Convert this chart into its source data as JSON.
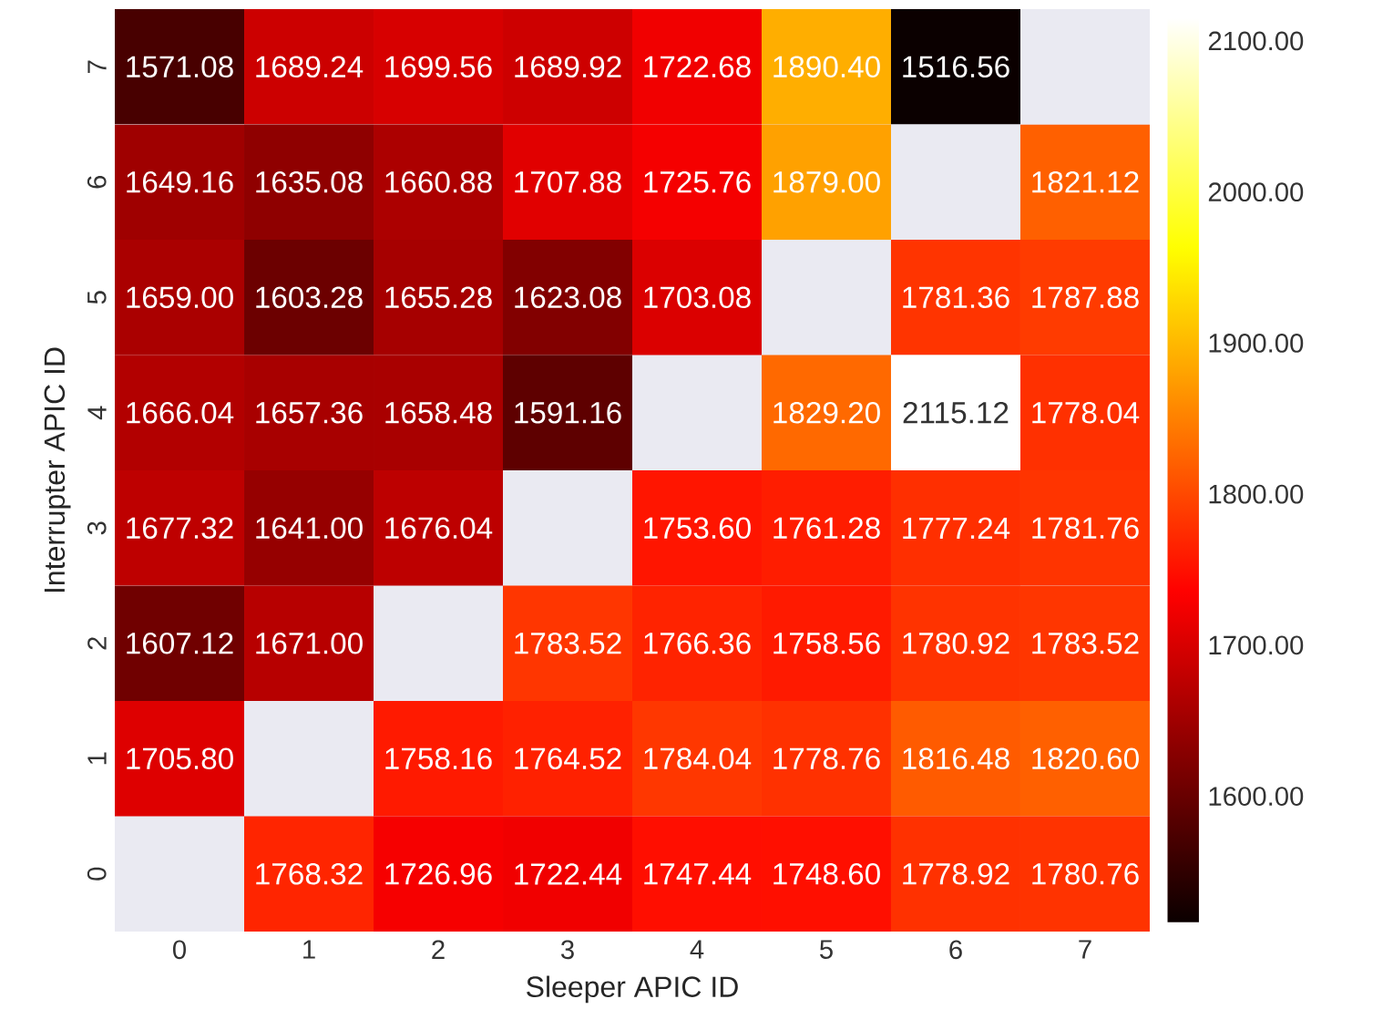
{
  "chart_data": {
    "type": "heatmap",
    "xlabel": "Sleeper APIC ID",
    "ylabel": "Interrupter APIC ID",
    "categories": [
      "0",
      "1",
      "2",
      "3",
      "4",
      "5",
      "6",
      "7"
    ],
    "y_categories": [
      "7",
      "6",
      "5",
      "4",
      "3",
      "2",
      "1",
      "0"
    ],
    "cells": [
      [
        1571.08,
        1689.24,
        1699.56,
        1689.92,
        1722.68,
        1890.4,
        1516.56,
        null
      ],
      [
        1649.16,
        1635.08,
        1660.88,
        1707.88,
        1725.76,
        1879.0,
        null,
        1821.12
      ],
      [
        1659.0,
        1603.28,
        1655.28,
        1623.08,
        1703.08,
        null,
        1781.36,
        1787.88
      ],
      [
        1666.04,
        1657.36,
        1658.48,
        1591.16,
        null,
        1829.2,
        2115.12,
        1778.04
      ],
      [
        1677.32,
        1641.0,
        1676.04,
        null,
        1753.6,
        1761.28,
        1777.24,
        1781.76
      ],
      [
        1607.12,
        1671.0,
        null,
        1783.52,
        1766.36,
        1758.56,
        1780.92,
        1783.52
      ],
      [
        1705.8,
        null,
        1758.16,
        1764.52,
        1784.04,
        1778.76,
        1816.48,
        1820.6
      ],
      [
        null,
        1768.32,
        1726.96,
        1722.44,
        1747.44,
        1748.6,
        1778.92,
        1780.76
      ]
    ],
    "cell_labels": [
      [
        "1571.08",
        "1689.24",
        "1699.56",
        "1689.92",
        "1722.68",
        "1890.40",
        "1516.56",
        null
      ],
      [
        "1649.16",
        "1635.08",
        "1660.88",
        "1707.88",
        "1725.76",
        "1879.00",
        null,
        "1821.12"
      ],
      [
        "1659.00",
        "1603.28",
        "1655.28",
        "1623.08",
        "1703.08",
        null,
        "1781.36",
        "1787.88"
      ],
      [
        "1666.04",
        "1657.36",
        "1658.48",
        "1591.16",
        null,
        "1829.20",
        "2115.12",
        "1778.04"
      ],
      [
        "1677.32",
        "1641.00",
        "1676.04",
        null,
        "1753.60",
        "1761.28",
        "1777.24",
        "1781.76"
      ],
      [
        "1607.12",
        "1671.00",
        null,
        "1783.52",
        "1766.36",
        "1758.56",
        "1780.92",
        "1783.52"
      ],
      [
        "1705.80",
        null,
        "1758.16",
        "1764.52",
        "1784.04",
        "1778.76",
        "1816.48",
        "1820.60"
      ],
      [
        null,
        "1768.32",
        "1726.96",
        "1722.44",
        "1747.44",
        "1748.60",
        "1778.92",
        "1780.76"
      ]
    ],
    "clim": [
      1516.56,
      2115.12
    ],
    "cticks": [
      {
        "value": 1600,
        "label": "1600.00"
      },
      {
        "value": 1700,
        "label": "1700.00"
      },
      {
        "value": 1800,
        "label": "1800.00"
      },
      {
        "value": 1900,
        "label": "1900.00"
      },
      {
        "value": 2000,
        "label": "2000.00"
      },
      {
        "value": 2100,
        "label": "2100.00"
      }
    ]
  }
}
